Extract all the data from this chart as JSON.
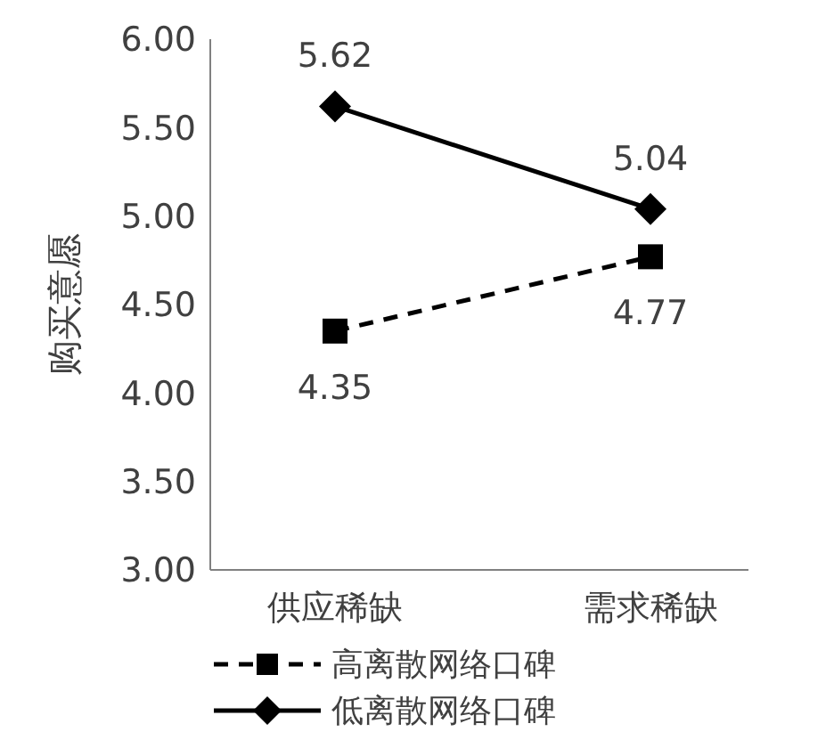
{
  "chart_data": {
    "type": "line",
    "categories": [
      "供应稀缺",
      "需求稀缺"
    ],
    "ylabel": "购买意愿",
    "ylim": [
      3,
      6
    ],
    "yticks": [
      {
        "value": 3,
        "label": "3.00"
      },
      {
        "value": 3.5,
        "label": "3.50"
      },
      {
        "value": 4,
        "label": "4.00"
      },
      {
        "value": 4.5,
        "label": "4.50"
      },
      {
        "value": 5,
        "label": "5.00"
      },
      {
        "value": 5.5,
        "label": "5.50"
      },
      {
        "value": 6,
        "label": "6.00"
      }
    ],
    "series": [
      {
        "name": "高离散网络口碑",
        "color": "#000000",
        "values": [
          4.35,
          4.77
        ],
        "marker": "square",
        "line_style": "dashed"
      },
      {
        "name": "低离散网络口碑",
        "color": "#000000",
        "values": [
          5.62,
          5.04
        ],
        "marker": "diamond",
        "line_style": "solid"
      }
    ],
    "data_labels": true,
    "grid": false,
    "legend": "bottom"
  }
}
